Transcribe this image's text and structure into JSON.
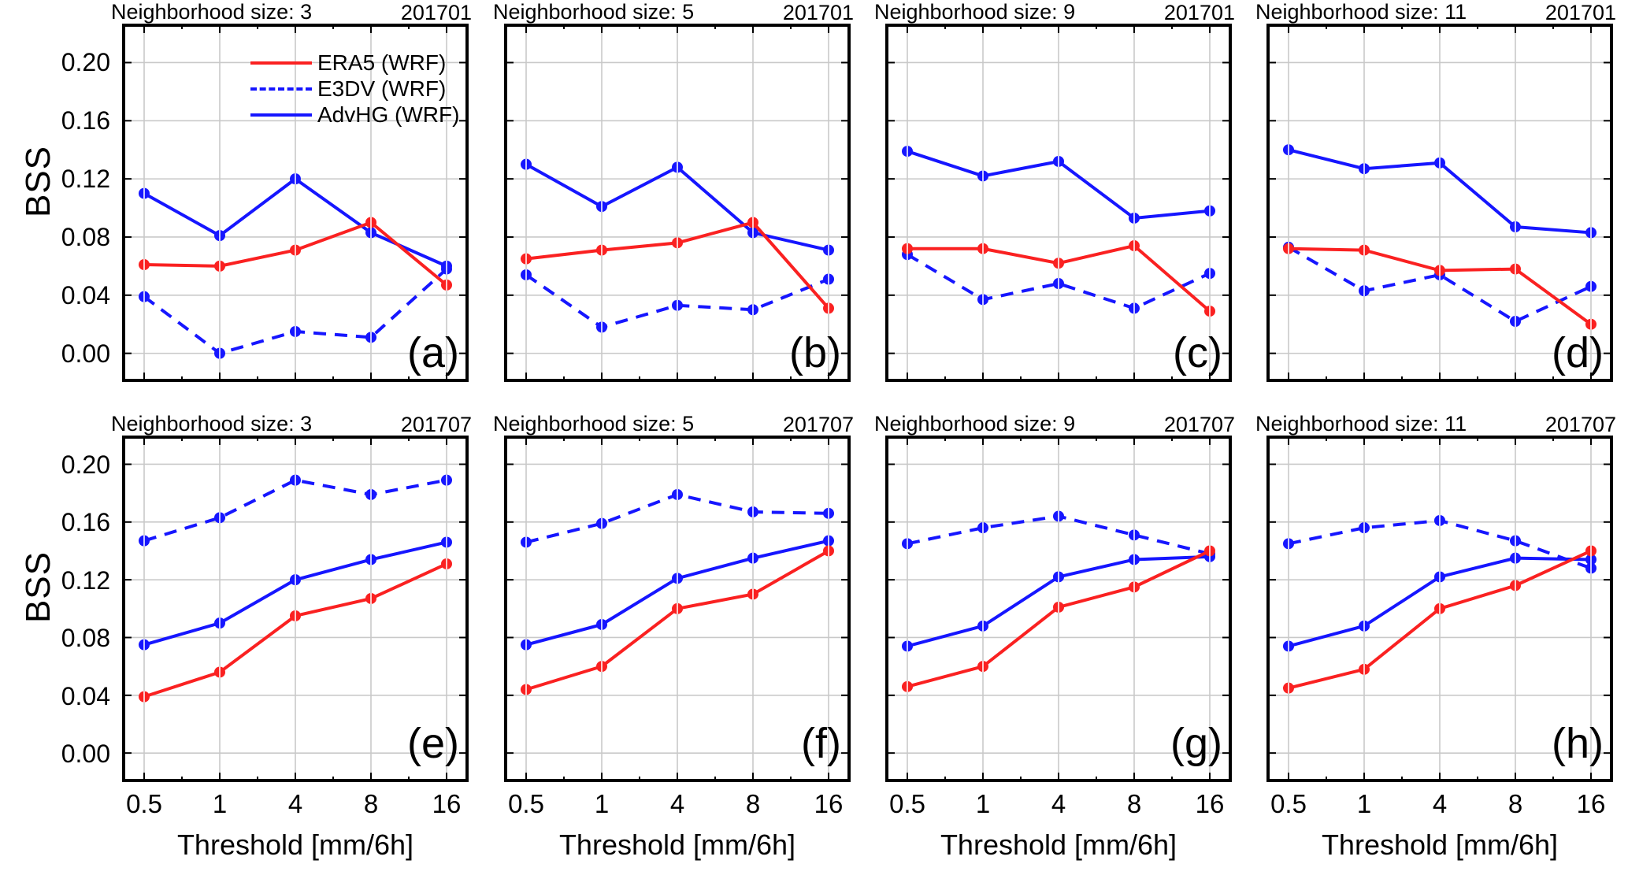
{
  "figure": {
    "ylabel": "BSS",
    "xlabel": "Threshold [mm/6h]",
    "x_tick_labels": [
      "0.5",
      "1",
      "4",
      "8",
      "16"
    ],
    "y_tick_labels": [
      "0.20",
      "0.16",
      "0.12",
      "0.08",
      "0.04",
      "0.00"
    ],
    "colors": {
      "red": "#fa2121",
      "blue": "#1616ff",
      "grid": "#c9c9c9",
      "axis": "#000000"
    },
    "legend": [
      {
        "label": "ERA5 (WRF)",
        "color": "red",
        "dash": false
      },
      {
        "label": "E3DV (WRF)",
        "color": "blue",
        "dash": true
      },
      {
        "label": "AdvHG (WRF)",
        "color": "blue",
        "dash": false
      }
    ]
  },
  "chart_data": [
    {
      "type": "line",
      "panel": "(a)",
      "title": "Neighborhood size: 3",
      "period": "201701",
      "x": [
        0.5,
        1,
        4,
        8,
        16
      ],
      "xlabel": "",
      "ylabel": "BSS",
      "yticks": [
        0.0,
        0.04,
        0.08,
        0.12,
        0.16,
        0.2
      ],
      "grid": true,
      "series": [
        {
          "name": "ERA5 (WRF)",
          "color": "red",
          "dash": false,
          "values": [
            0.061,
            0.06,
            0.071,
            0.09,
            0.047
          ]
        },
        {
          "name": "E3DV (WRF)",
          "color": "blue",
          "dash": true,
          "values": [
            0.039,
            0.0,
            0.015,
            0.011,
            0.058
          ]
        },
        {
          "name": "AdvHG (WRF)",
          "color": "blue",
          "dash": false,
          "values": [
            0.11,
            0.081,
            0.12,
            0.083,
            0.06
          ]
        }
      ]
    },
    {
      "type": "line",
      "panel": "(b)",
      "title": "Neighborhood size: 5",
      "period": "201701",
      "x": [
        0.5,
        1,
        4,
        8,
        16
      ],
      "xlabel": "",
      "ylabel": "",
      "yticks": [
        0.0,
        0.04,
        0.08,
        0.12,
        0.16,
        0.2
      ],
      "grid": true,
      "series": [
        {
          "name": "ERA5 (WRF)",
          "color": "red",
          "dash": false,
          "values": [
            0.065,
            0.071,
            0.076,
            0.09,
            0.031
          ]
        },
        {
          "name": "E3DV (WRF)",
          "color": "blue",
          "dash": true,
          "values": [
            0.054,
            0.018,
            0.033,
            0.03,
            0.051
          ]
        },
        {
          "name": "AdvHG (WRF)",
          "color": "blue",
          "dash": false,
          "values": [
            0.13,
            0.101,
            0.128,
            0.083,
            0.071
          ]
        }
      ]
    },
    {
      "type": "line",
      "panel": "(c)",
      "title": "Neighborhood size: 9",
      "period": "201701",
      "x": [
        0.5,
        1,
        4,
        8,
        16
      ],
      "xlabel": "",
      "ylabel": "",
      "yticks": [
        0.0,
        0.04,
        0.08,
        0.12,
        0.16,
        0.2
      ],
      "grid": true,
      "series": [
        {
          "name": "ERA5 (WRF)",
          "color": "red",
          "dash": false,
          "values": [
            0.072,
            0.072,
            0.062,
            0.074,
            0.029
          ]
        },
        {
          "name": "E3DV (WRF)",
          "color": "blue",
          "dash": true,
          "values": [
            0.068,
            0.037,
            0.048,
            0.031,
            0.055
          ]
        },
        {
          "name": "AdvHG (WRF)",
          "color": "blue",
          "dash": false,
          "values": [
            0.139,
            0.122,
            0.132,
            0.093,
            0.098
          ]
        }
      ]
    },
    {
      "type": "line",
      "panel": "(d)",
      "title": "Neighborhood size: 11",
      "period": "201701",
      "x": [
        0.5,
        1,
        4,
        8,
        16
      ],
      "xlabel": "",
      "ylabel": "",
      "yticks": [
        0.0,
        0.04,
        0.08,
        0.12,
        0.16,
        0.2
      ],
      "grid": true,
      "series": [
        {
          "name": "ERA5 (WRF)",
          "color": "red",
          "dash": false,
          "values": [
            0.072,
            0.071,
            0.057,
            0.058,
            0.02
          ]
        },
        {
          "name": "E3DV (WRF)",
          "color": "blue",
          "dash": true,
          "values": [
            0.073,
            0.043,
            0.054,
            0.022,
            0.046
          ]
        },
        {
          "name": "AdvHG (WRF)",
          "color": "blue",
          "dash": false,
          "values": [
            0.14,
            0.127,
            0.131,
            0.087,
            0.083
          ]
        }
      ]
    },
    {
      "type": "line",
      "panel": "(e)",
      "title": "Neighborhood size: 3",
      "period": "201707",
      "x": [
        0.5,
        1,
        4,
        8,
        16
      ],
      "xlabel": "Threshold [mm/6h]",
      "ylabel": "BSS",
      "yticks": [
        0.0,
        0.04,
        0.08,
        0.12,
        0.16,
        0.2
      ],
      "grid": true,
      "series": [
        {
          "name": "ERA5 (WRF)",
          "color": "red",
          "dash": false,
          "values": [
            0.039,
            0.056,
            0.095,
            0.107,
            0.131
          ]
        },
        {
          "name": "E3DV (WRF)",
          "color": "blue",
          "dash": true,
          "values": [
            0.147,
            0.163,
            0.189,
            0.179,
            0.189
          ]
        },
        {
          "name": "AdvHG (WRF)",
          "color": "blue",
          "dash": false,
          "values": [
            0.075,
            0.09,
            0.12,
            0.134,
            0.146
          ]
        }
      ]
    },
    {
      "type": "line",
      "panel": "(f)",
      "title": "Neighborhood size: 5",
      "period": "201707",
      "x": [
        0.5,
        1,
        4,
        8,
        16
      ],
      "xlabel": "Threshold [mm/6h]",
      "ylabel": "",
      "yticks": [
        0.0,
        0.04,
        0.08,
        0.12,
        0.16,
        0.2
      ],
      "grid": true,
      "series": [
        {
          "name": "ERA5 (WRF)",
          "color": "red",
          "dash": false,
          "values": [
            0.044,
            0.06,
            0.1,
            0.11,
            0.14
          ]
        },
        {
          "name": "E3DV (WRF)",
          "color": "blue",
          "dash": true,
          "values": [
            0.146,
            0.159,
            0.179,
            0.167,
            0.166
          ]
        },
        {
          "name": "AdvHG (WRF)",
          "color": "blue",
          "dash": false,
          "values": [
            0.075,
            0.089,
            0.121,
            0.135,
            0.147
          ]
        }
      ]
    },
    {
      "type": "line",
      "panel": "(g)",
      "title": "Neighborhood size: 9",
      "period": "201707",
      "x": [
        0.5,
        1,
        4,
        8,
        16
      ],
      "xlabel": "Threshold [mm/6h]",
      "ylabel": "",
      "yticks": [
        0.0,
        0.04,
        0.08,
        0.12,
        0.16,
        0.2
      ],
      "grid": true,
      "series": [
        {
          "name": "ERA5 (WRF)",
          "color": "red",
          "dash": false,
          "values": [
            0.046,
            0.06,
            0.101,
            0.115,
            0.14
          ]
        },
        {
          "name": "E3DV (WRF)",
          "color": "blue",
          "dash": true,
          "values": [
            0.145,
            0.156,
            0.164,
            0.151,
            0.138
          ]
        },
        {
          "name": "AdvHG (WRF)",
          "color": "blue",
          "dash": false,
          "values": [
            0.074,
            0.088,
            0.122,
            0.134,
            0.136
          ]
        }
      ]
    },
    {
      "type": "line",
      "panel": "(h)",
      "title": "Neighborhood size: 11",
      "period": "201707",
      "x": [
        0.5,
        1,
        4,
        8,
        16
      ],
      "xlabel": "Threshold [mm/6h]",
      "ylabel": "",
      "yticks": [
        0.0,
        0.04,
        0.08,
        0.12,
        0.16,
        0.2
      ],
      "grid": true,
      "series": [
        {
          "name": "ERA5 (WRF)",
          "color": "red",
          "dash": false,
          "values": [
            0.045,
            0.058,
            0.1,
            0.116,
            0.14
          ]
        },
        {
          "name": "E3DV (WRF)",
          "color": "blue",
          "dash": true,
          "values": [
            0.145,
            0.156,
            0.161,
            0.147,
            0.128
          ]
        },
        {
          "name": "AdvHG (WRF)",
          "color": "blue",
          "dash": false,
          "values": [
            0.074,
            0.088,
            0.122,
            0.135,
            0.134
          ]
        }
      ]
    }
  ]
}
